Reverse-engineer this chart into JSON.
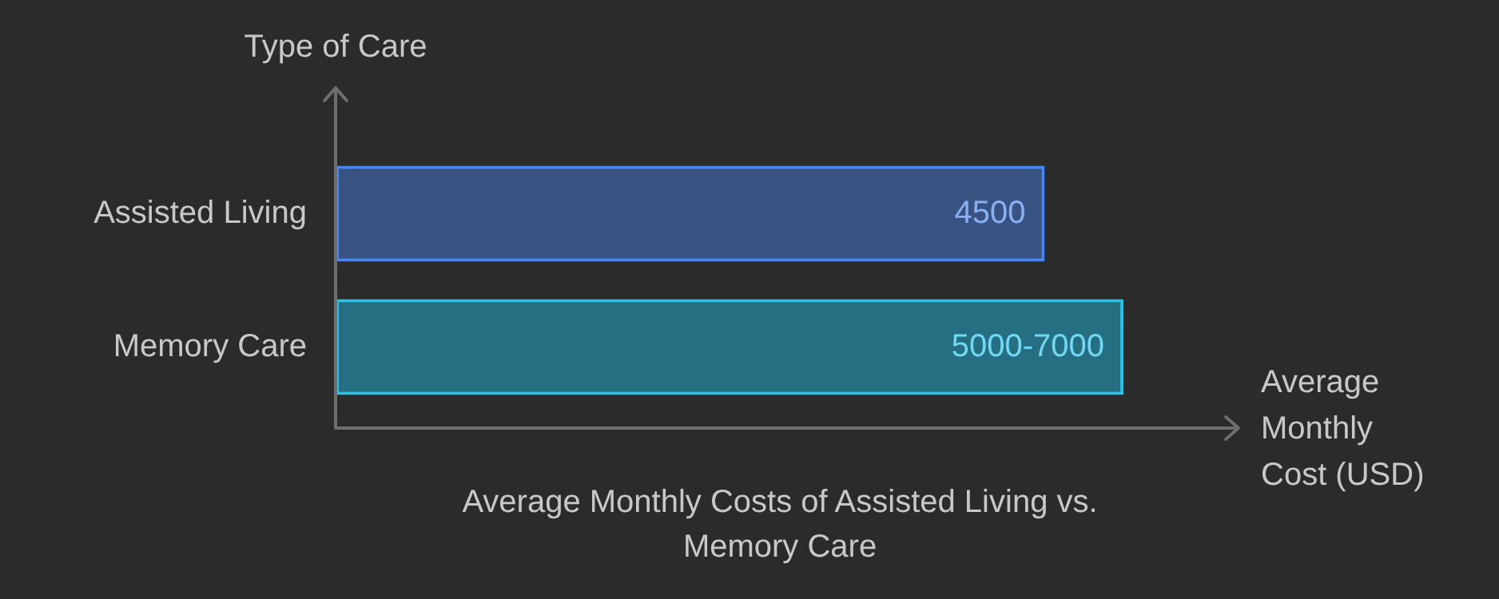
{
  "chart_data": {
    "type": "bar",
    "orientation": "horizontal",
    "title": "Average Monthly Costs of Assisted Living vs. Memory Care",
    "xlabel": "Average Monthly Cost (USD)",
    "ylabel": "Type of Care",
    "categories": [
      "Assisted Living",
      "Memory Care"
    ],
    "values": [
      4500,
      5000
    ],
    "value_labels": [
      "4500",
      "5000-7000"
    ],
    "colors": [
      "#4a86ee",
      "#22c4ee"
    ],
    "legend": false
  }
}
